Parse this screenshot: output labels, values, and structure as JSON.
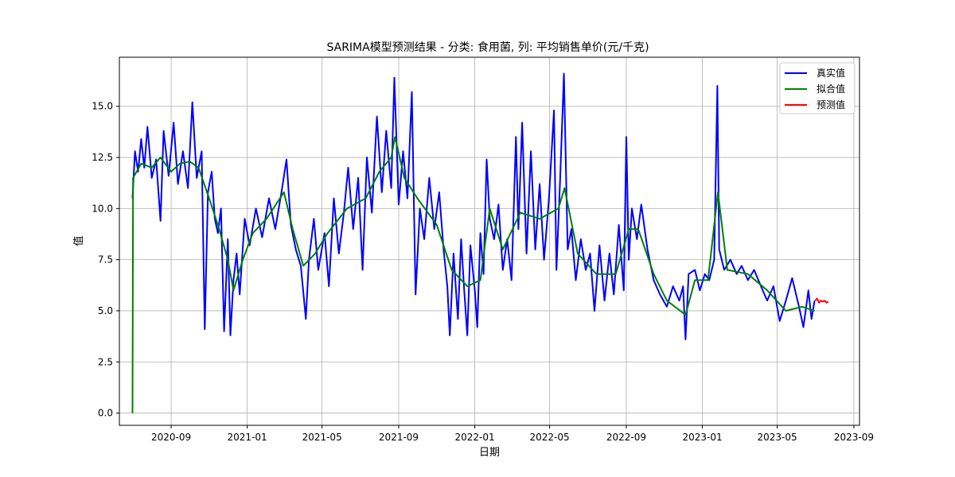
{
  "chart_data": {
    "type": "line",
    "title": "SARIMA模型预测结果 - 分类: 食用菌, 列: 平均销售单价(元/千克)",
    "xlabel": "日期",
    "ylabel": "值",
    "x_range": [
      "2020-06-10",
      "2023-09-10"
    ],
    "ylim": [
      -0.6,
      17.4
    ],
    "x_ticks": [
      "2020-09",
      "2021-01",
      "2021-05",
      "2021-09",
      "2022-01",
      "2022-05",
      "2022-09",
      "2023-01",
      "2023-05",
      "2023-09"
    ],
    "y_ticks": [
      "0.0",
      "2.5",
      "5.0",
      "7.5",
      "10.0",
      "12.5",
      "15.0"
    ],
    "grid": true,
    "legend_position": "top-right",
    "series": [
      {
        "name": "真实值",
        "color": "#0000ff",
        "points": [
          [
            "2020-07-01",
            10.5
          ],
          [
            "2020-07-05",
            12.8
          ],
          [
            "2020-07-10",
            11.8
          ],
          [
            "2020-07-15",
            13.4
          ],
          [
            "2020-07-20",
            12.0
          ],
          [
            "2020-07-25",
            14.0
          ],
          [
            "2020-08-01",
            11.5
          ],
          [
            "2020-08-08",
            12.4
          ],
          [
            "2020-08-15",
            9.4
          ],
          [
            "2020-08-20",
            13.8
          ],
          [
            "2020-08-28",
            11.6
          ],
          [
            "2020-09-05",
            14.2
          ],
          [
            "2020-09-12",
            11.2
          ],
          [
            "2020-09-20",
            12.8
          ],
          [
            "2020-09-28",
            11.0
          ],
          [
            "2020-10-05",
            15.2
          ],
          [
            "2020-10-12",
            11.5
          ],
          [
            "2020-10-20",
            12.8
          ],
          [
            "2020-10-25",
            4.1
          ],
          [
            "2020-10-30",
            10.8
          ],
          [
            "2020-11-05",
            11.8
          ],
          [
            "2020-11-10",
            9.5
          ],
          [
            "2020-11-15",
            8.8
          ],
          [
            "2020-11-20",
            10.0
          ],
          [
            "2020-11-25",
            4.0
          ],
          [
            "2020-12-01",
            8.5
          ],
          [
            "2020-12-05",
            3.8
          ],
          [
            "2020-12-10",
            6.5
          ],
          [
            "2020-12-15",
            7.8
          ],
          [
            "2020-12-20",
            5.8
          ],
          [
            "2020-12-28",
            9.5
          ],
          [
            "2021-01-05",
            8.2
          ],
          [
            "2021-01-15",
            10.0
          ],
          [
            "2021-01-25",
            8.6
          ],
          [
            "2021-02-05",
            10.5
          ],
          [
            "2021-02-15",
            9.0
          ],
          [
            "2021-02-25",
            10.8
          ],
          [
            "2021-03-05",
            12.4
          ],
          [
            "2021-03-12",
            9.2
          ],
          [
            "2021-03-20",
            8.0
          ],
          [
            "2021-03-28",
            7.2
          ],
          [
            "2021-04-05",
            4.6
          ],
          [
            "2021-04-10",
            7.5
          ],
          [
            "2021-04-18",
            9.5
          ],
          [
            "2021-04-25",
            7.0
          ],
          [
            "2021-05-05",
            8.8
          ],
          [
            "2021-05-12",
            6.2
          ],
          [
            "2021-05-20",
            10.5
          ],
          [
            "2021-05-28",
            7.8
          ],
          [
            "2021-06-05",
            9.8
          ],
          [
            "2021-06-12",
            12.0
          ],
          [
            "2021-06-20",
            9.0
          ],
          [
            "2021-06-28",
            11.5
          ],
          [
            "2021-07-05",
            7.0
          ],
          [
            "2021-07-12",
            12.5
          ],
          [
            "2021-07-20",
            9.8
          ],
          [
            "2021-07-28",
            14.5
          ],
          [
            "2021-08-05",
            10.8
          ],
          [
            "2021-08-12",
            13.8
          ],
          [
            "2021-08-20",
            11.0
          ],
          [
            "2021-08-25",
            16.4
          ],
          [
            "2021-09-01",
            10.2
          ],
          [
            "2021-09-08",
            12.8
          ],
          [
            "2021-09-15",
            10.5
          ],
          [
            "2021-09-22",
            15.7
          ],
          [
            "2021-09-28",
            5.8
          ],
          [
            "2021-10-05",
            10.0
          ],
          [
            "2021-10-12",
            8.5
          ],
          [
            "2021-10-20",
            11.5
          ],
          [
            "2021-10-28",
            9.0
          ],
          [
            "2021-11-05",
            10.8
          ],
          [
            "2021-11-12",
            8.0
          ],
          [
            "2021-11-18",
            6.2
          ],
          [
            "2021-11-22",
            3.8
          ],
          [
            "2021-11-28",
            7.8
          ],
          [
            "2021-12-05",
            4.6
          ],
          [
            "2021-12-10",
            8.5
          ],
          [
            "2021-12-15",
            6.0
          ],
          [
            "2021-12-20",
            3.8
          ],
          [
            "2021-12-25",
            8.2
          ],
          [
            "2022-01-01",
            6.0
          ],
          [
            "2022-01-05",
            4.2
          ],
          [
            "2022-01-10",
            8.8
          ],
          [
            "2022-01-15",
            6.8
          ],
          [
            "2022-01-20",
            12.4
          ],
          [
            "2022-01-25",
            9.5
          ],
          [
            "2022-02-01",
            8.5
          ],
          [
            "2022-02-08",
            10.2
          ],
          [
            "2022-02-15",
            7.0
          ],
          [
            "2022-02-22",
            8.5
          ],
          [
            "2022-03-01",
            6.5
          ],
          [
            "2022-03-08",
            13.5
          ],
          [
            "2022-03-12",
            9.0
          ],
          [
            "2022-03-18",
            14.2
          ],
          [
            "2022-03-25",
            7.8
          ],
          [
            "2022-04-01",
            12.8
          ],
          [
            "2022-04-08",
            8.0
          ],
          [
            "2022-04-15",
            11.2
          ],
          [
            "2022-04-22",
            7.5
          ],
          [
            "2022-04-30",
            10.5
          ],
          [
            "2022-05-08",
            14.8
          ],
          [
            "2022-05-12",
            7.0
          ],
          [
            "2022-05-18",
            11.5
          ],
          [
            "2022-05-24",
            16.6
          ],
          [
            "2022-05-30",
            8.0
          ],
          [
            "2022-06-05",
            9.0
          ],
          [
            "2022-06-12",
            6.5
          ],
          [
            "2022-06-20",
            8.5
          ],
          [
            "2022-06-28",
            7.0
          ],
          [
            "2022-07-05",
            7.8
          ],
          [
            "2022-07-12",
            5.0
          ],
          [
            "2022-07-20",
            8.2
          ],
          [
            "2022-07-28",
            5.5
          ],
          [
            "2022-08-05",
            7.8
          ],
          [
            "2022-08-12",
            5.8
          ],
          [
            "2022-08-20",
            9.2
          ],
          [
            "2022-08-28",
            6.0
          ],
          [
            "2022-09-01",
            13.5
          ],
          [
            "2022-09-05",
            7.5
          ],
          [
            "2022-09-10",
            10.0
          ],
          [
            "2022-09-18",
            8.5
          ],
          [
            "2022-09-25",
            10.2
          ],
          [
            "2022-10-05",
            8.0
          ],
          [
            "2022-10-15",
            6.5
          ],
          [
            "2022-10-25",
            5.8
          ],
          [
            "2022-11-05",
            5.2
          ],
          [
            "2022-11-15",
            6.2
          ],
          [
            "2022-11-25",
            5.5
          ],
          [
            "2022-12-01",
            6.2
          ],
          [
            "2022-12-05",
            3.6
          ],
          [
            "2022-12-10",
            6.8
          ],
          [
            "2022-12-20",
            7.0
          ],
          [
            "2022-12-28",
            6.0
          ],
          [
            "2023-01-05",
            6.8
          ],
          [
            "2023-01-12",
            6.5
          ],
          [
            "2023-01-20",
            7.5
          ],
          [
            "2023-01-25",
            16.0
          ],
          [
            "2023-01-28",
            8.0
          ],
          [
            "2023-02-05",
            7.0
          ],
          [
            "2023-02-15",
            7.5
          ],
          [
            "2023-02-25",
            6.8
          ],
          [
            "2023-03-05",
            7.2
          ],
          [
            "2023-03-15",
            6.5
          ],
          [
            "2023-03-25",
            7.0
          ],
          [
            "2023-04-05",
            6.2
          ],
          [
            "2023-04-15",
            5.5
          ],
          [
            "2023-04-25",
            6.2
          ],
          [
            "2023-05-05",
            4.5
          ],
          [
            "2023-05-15",
            5.5
          ],
          [
            "2023-05-25",
            6.6
          ],
          [
            "2023-06-05",
            5.2
          ],
          [
            "2023-06-12",
            4.2
          ],
          [
            "2023-06-20",
            6.0
          ],
          [
            "2023-06-25",
            4.6
          ],
          [
            "2023-06-30",
            5.5
          ]
        ]
      },
      {
        "name": "拟合值",
        "color": "#008000",
        "points": [
          [
            "2020-07-01",
            0.0
          ],
          [
            "2020-07-02",
            11.5
          ],
          [
            "2020-07-15",
            12.2
          ],
          [
            "2020-08-01",
            12.0
          ],
          [
            "2020-08-15",
            12.5
          ],
          [
            "2020-09-01",
            11.8
          ],
          [
            "2020-09-15",
            12.2
          ],
          [
            "2020-10-01",
            12.3
          ],
          [
            "2020-10-15",
            12.0
          ],
          [
            "2020-11-01",
            10.5
          ],
          [
            "2020-11-15",
            9.2
          ],
          [
            "2020-12-01",
            7.5
          ],
          [
            "2020-12-10",
            6.0
          ],
          [
            "2020-12-25",
            7.5
          ],
          [
            "2021-01-10",
            8.8
          ],
          [
            "2021-02-01",
            9.5
          ],
          [
            "2021-03-01",
            10.8
          ],
          [
            "2021-03-15",
            9.0
          ],
          [
            "2021-04-01",
            7.2
          ],
          [
            "2021-04-20",
            7.8
          ],
          [
            "2021-05-10",
            8.8
          ],
          [
            "2021-06-10",
            10.0
          ],
          [
            "2021-07-10",
            10.5
          ],
          [
            "2021-08-01",
            11.8
          ],
          [
            "2021-08-20",
            12.5
          ],
          [
            "2021-08-26",
            13.5
          ],
          [
            "2021-09-10",
            11.5
          ],
          [
            "2021-10-01",
            10.5
          ],
          [
            "2021-11-01",
            9.2
          ],
          [
            "2021-11-25",
            7.0
          ],
          [
            "2021-12-20",
            6.2
          ],
          [
            "2022-01-10",
            6.5
          ],
          [
            "2022-01-25",
            10.0
          ],
          [
            "2022-02-15",
            8.0
          ],
          [
            "2022-03-15",
            9.8
          ],
          [
            "2022-04-15",
            9.5
          ],
          [
            "2022-05-15",
            10.0
          ],
          [
            "2022-05-25",
            11.0
          ],
          [
            "2022-06-15",
            7.8
          ],
          [
            "2022-07-15",
            6.8
          ],
          [
            "2022-08-15",
            6.8
          ],
          [
            "2022-09-05",
            9.0
          ],
          [
            "2022-09-20",
            9.0
          ],
          [
            "2022-10-15",
            6.8
          ],
          [
            "2022-11-05",
            5.5
          ],
          [
            "2022-12-05",
            4.8
          ],
          [
            "2022-12-20",
            6.5
          ],
          [
            "2023-01-10",
            6.5
          ],
          [
            "2023-01-26",
            10.8
          ],
          [
            "2023-02-10",
            7.0
          ],
          [
            "2023-03-15",
            6.8
          ],
          [
            "2023-04-15",
            6.0
          ],
          [
            "2023-05-15",
            5.0
          ],
          [
            "2023-06-10",
            5.2
          ],
          [
            "2023-06-30",
            5.0
          ]
        ]
      },
      {
        "name": "预测值",
        "color": "#ff0000",
        "points": [
          [
            "2023-07-01",
            5.5
          ],
          [
            "2023-07-04",
            5.6
          ],
          [
            "2023-07-07",
            5.4
          ],
          [
            "2023-07-10",
            5.5
          ],
          [
            "2023-07-13",
            5.45
          ],
          [
            "2023-07-16",
            5.5
          ],
          [
            "2023-07-19",
            5.4
          ],
          [
            "2023-07-22",
            5.45
          ]
        ]
      }
    ]
  }
}
